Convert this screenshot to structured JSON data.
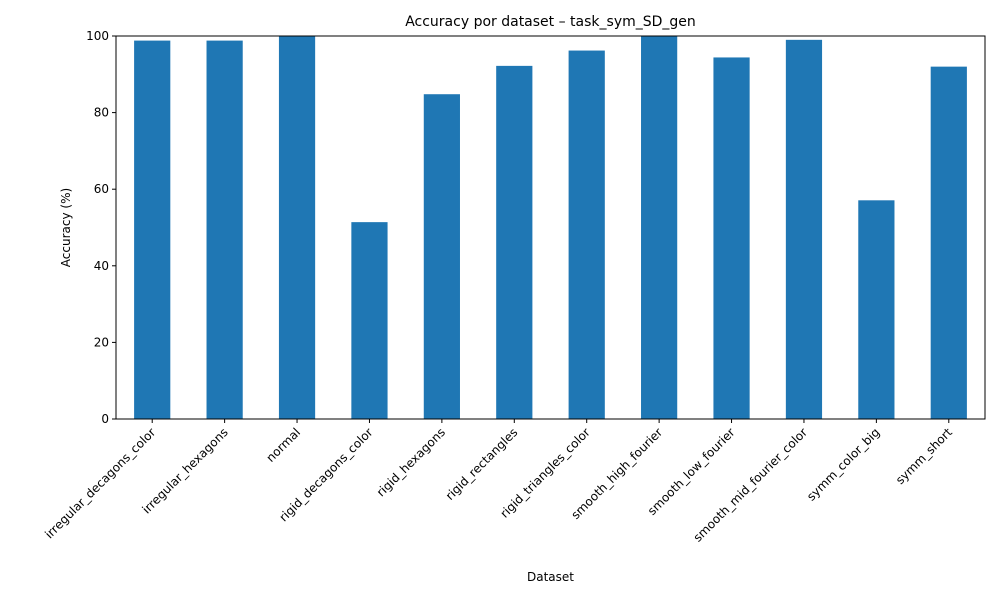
{
  "chart_data": {
    "type": "bar",
    "title": "Accuracy por dataset – task_sym_SD_gen",
    "xlabel": "Dataset",
    "ylabel": "Accuracy (%)",
    "ylim": [
      0,
      100
    ],
    "yticks": [
      0,
      20,
      40,
      60,
      80,
      100
    ],
    "grid": false,
    "legend": "none",
    "bar_color": "#1f77b4",
    "categories": [
      "irregular_decagons_color",
      "irregular_hexagons",
      "normal",
      "rigid_decagons_color",
      "rigid_hexagons",
      "rigid_rectangles",
      "rigid_triangles_color",
      "smooth_high_fourier",
      "smooth_low_fourier",
      "smooth_mid_fourier_color",
      "symm_color_big",
      "symm_short"
    ],
    "values": [
      98.8,
      98.8,
      100,
      51.4,
      84.8,
      92.2,
      96.2,
      100,
      94.4,
      99.0,
      57.1,
      92.0
    ]
  }
}
